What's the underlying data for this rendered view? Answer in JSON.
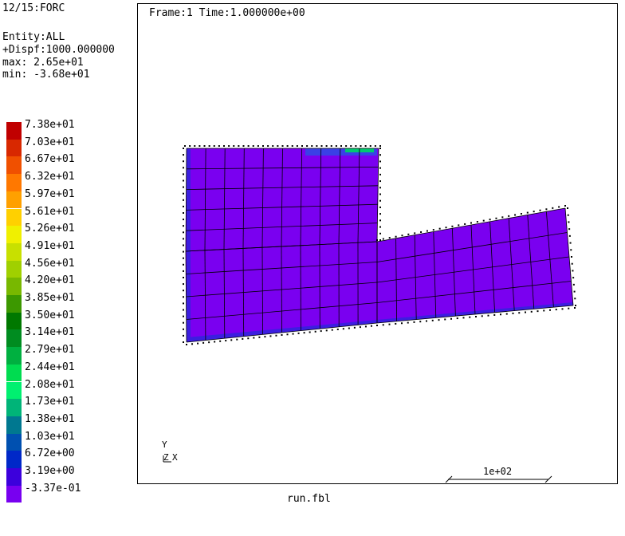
{
  "info": {
    "header": "12/15:FORC",
    "entity": "Entity:ALL",
    "dispf": "+Dispf:1000.000000",
    "max": "max: 2.65e+01",
    "min": "min: -3.68e+01"
  },
  "legend": {
    "entries": [
      {
        "label": "7.38e+01",
        "color": "#c00000"
      },
      {
        "label": "7.03e+01",
        "color": "#d82800"
      },
      {
        "label": "6.67e+01",
        "color": "#f05000"
      },
      {
        "label": "6.32e+01",
        "color": "#ff7800"
      },
      {
        "label": "5.97e+01",
        "color": "#ffa000"
      },
      {
        "label": "5.61e+01",
        "color": "#ffd000"
      },
      {
        "label": "5.26e+01",
        "color": "#f0f000"
      },
      {
        "label": "4.91e+01",
        "color": "#c8e000"
      },
      {
        "label": "4.56e+01",
        "color": "#a0d000"
      },
      {
        "label": "4.20e+01",
        "color": "#78b800"
      },
      {
        "label": "3.85e+01",
        "color": "#3c9800"
      },
      {
        "label": "3.50e+01",
        "color": "#007800"
      },
      {
        "label": "3.14e+01",
        "color": "#008c20"
      },
      {
        "label": "2.79e+01",
        "color": "#00b040"
      },
      {
        "label": "2.44e+01",
        "color": "#00dc50"
      },
      {
        "label": "2.08e+01",
        "color": "#00f070"
      },
      {
        "label": "1.73e+01",
        "color": "#00b478"
      },
      {
        "label": "1.38e+01",
        "color": "#007890"
      },
      {
        "label": "1.03e+01",
        "color": "#0050b0"
      },
      {
        "label": "6.72e+00",
        "color": "#0028c8"
      },
      {
        "label": "3.19e+00",
        "color": "#3c00dc"
      },
      {
        "label": "-3.37e-01",
        "color": "#7800f0"
      }
    ]
  },
  "viewport": {
    "title": "Frame:1 Time:1.000000e+00",
    "fill_color": "#7a00f0",
    "edge_color": "#3c1ee0"
  },
  "triad": {
    "y_label": "Y",
    "z_label": "Z",
    "x_label": "X"
  },
  "scale": {
    "label": "1e+02"
  },
  "footer": {
    "file": "run.fbl"
  }
}
